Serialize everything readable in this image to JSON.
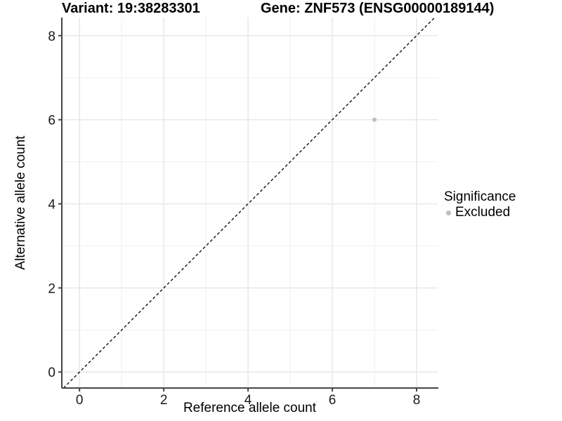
{
  "titles": {
    "variant": "Variant: 19:38283301",
    "gene": "Gene: ZNF573 (ENSG00000189144)"
  },
  "chart_data": {
    "type": "scatter",
    "title": "",
    "xlabel": "Reference allele count",
    "ylabel": "Alternative allele count",
    "xlim": [
      -0.42,
      8.5
    ],
    "ylim": [
      -0.38,
      8.43
    ],
    "xticks": [
      0,
      2,
      4,
      6,
      8
    ],
    "yticks": [
      0,
      2,
      4,
      6,
      8
    ],
    "minor_xticks": [
      1,
      3,
      5,
      7
    ],
    "minor_yticks": [
      1,
      3,
      5,
      7
    ],
    "grid": "major+minor",
    "identity_line": {
      "equation": "y = x",
      "style": "dashed",
      "color": "#000000"
    },
    "series": [
      {
        "name": "Excluded",
        "color": "#bebebe",
        "points": [
          {
            "x": 7,
            "y": 6
          }
        ]
      }
    ],
    "legend": {
      "title": "Significance",
      "position": "right",
      "entries": [
        {
          "label": "Excluded",
          "color": "#bebebe"
        }
      ]
    }
  },
  "colors": {
    "background": "#ffffff",
    "grid_major": "#e7e7e7",
    "grid_minor": "#f0f0f0",
    "axis_line": "#454545",
    "tick_label": "#1a1a1a",
    "point": "#bebebe",
    "dashed_line": "#000000"
  }
}
